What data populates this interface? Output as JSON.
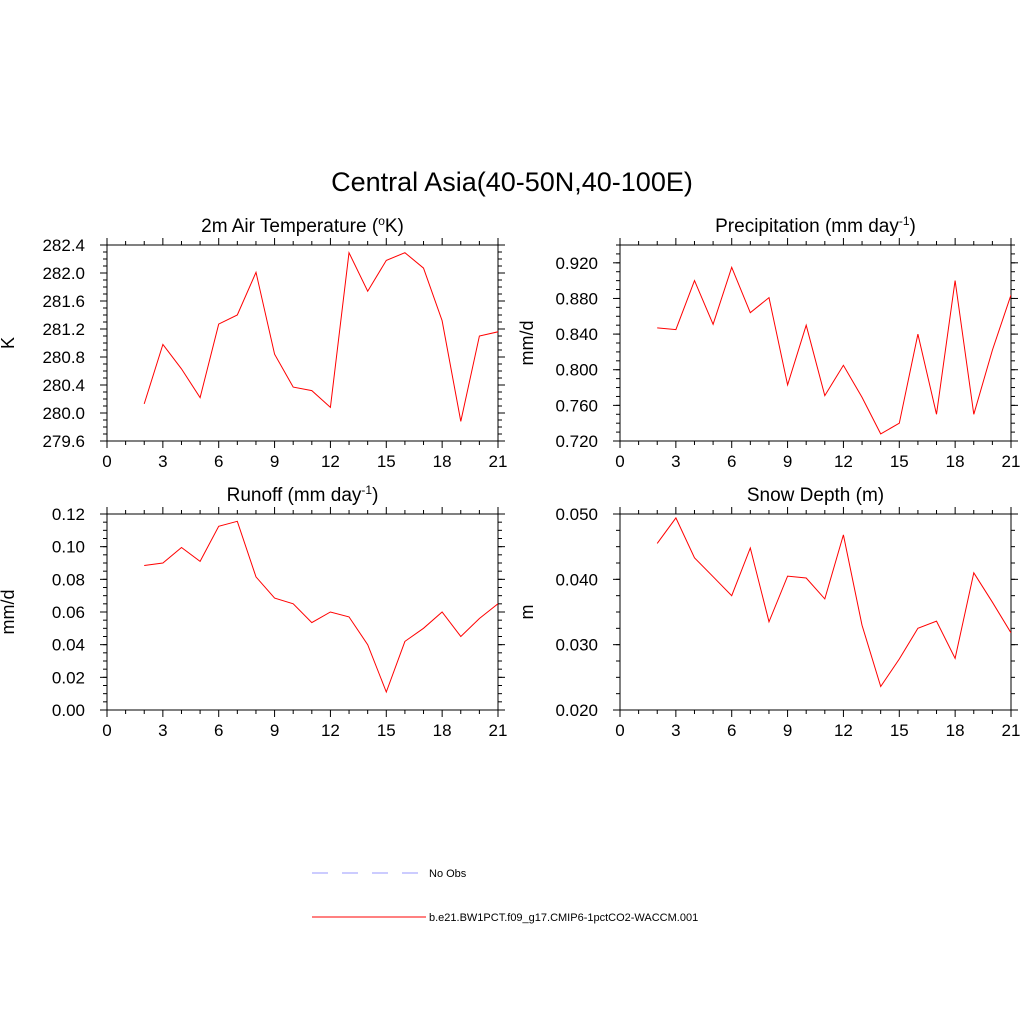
{
  "title": "Central Asia(40-50N,40-100E)",
  "legend": [
    {
      "label": "No Obs",
      "color": "#9999ff",
      "dash": true
    },
    {
      "label": "b.e21.BW1PCT.f09_g17.CMIP6-1pctCO2-WACCM.001",
      "color": "#ff0000",
      "dash": false
    }
  ],
  "chart_data": [
    {
      "type": "line",
      "title": "2m Air Temperature (°K)",
      "title_parts": [
        "2m Air Temperature (",
        "o",
        "K)"
      ],
      "ylabel": "K",
      "xlim": [
        0,
        21
      ],
      "ylim": [
        279.6,
        282.4
      ],
      "xticks": [
        "0",
        "3",
        "6",
        "9",
        "12",
        "15",
        "18",
        "21"
      ],
      "yticks": [
        "279.6",
        "280.0",
        "280.4",
        "280.8",
        "281.2",
        "281.6",
        "282.0",
        "282.4"
      ],
      "series": [
        {
          "name": "b.e21.BW1PCT.f09_g17.CMIP6-1pctCO2-WACCM.001",
          "color": "#ff0000",
          "x": [
            2,
            3,
            4,
            5,
            6,
            7,
            8,
            9,
            10,
            11,
            12,
            13,
            14,
            15,
            16,
            17,
            18,
            19,
            20,
            21
          ],
          "y": [
            280.13,
            280.98,
            280.63,
            280.22,
            281.27,
            281.4,
            282.01,
            280.84,
            280.37,
            280.32,
            280.08,
            282.29,
            281.74,
            282.18,
            282.29,
            282.07,
            281.32,
            279.88,
            281.1,
            281.16
          ]
        }
      ]
    },
    {
      "type": "line",
      "title": "Precipitation (mm day-1)",
      "title_parts": [
        "Precipitation (mm day",
        "-1",
        ")"
      ],
      "ylabel": "mm/d",
      "xlim": [
        0,
        21
      ],
      "ylim": [
        0.72,
        0.94
      ],
      "xticks": [
        "0",
        "3",
        "6",
        "9",
        "12",
        "15",
        "18",
        "21"
      ],
      "yticks": [
        "0.720",
        "0.760",
        "0.800",
        "0.840",
        "0.880",
        "0.920"
      ],
      "series": [
        {
          "name": "b.e21.BW1PCT.f09_g17.CMIP6-1pctCO2-WACCM.001",
          "color": "#ff0000",
          "x": [
            2,
            3,
            4,
            5,
            6,
            7,
            8,
            9,
            10,
            11,
            12,
            13,
            14,
            15,
            16,
            17,
            18,
            19,
            20,
            21
          ],
          "y": [
            0.847,
            0.845,
            0.9,
            0.851,
            0.915,
            0.864,
            0.881,
            0.783,
            0.85,
            0.771,
            0.805,
            0.769,
            0.728,
            0.74,
            0.84,
            0.75,
            0.9,
            0.75,
            0.822,
            0.884
          ]
        }
      ]
    },
    {
      "type": "line",
      "title": "Runoff (mm day-1)",
      "title_parts": [
        "Runoff (mm day",
        "-1",
        ")"
      ],
      "ylabel": "mm/d",
      "xlim": [
        0,
        21
      ],
      "ylim": [
        0.0,
        0.12
      ],
      "xticks": [
        "0",
        "3",
        "6",
        "9",
        "12",
        "15",
        "18",
        "21"
      ],
      "yticks": [
        "0.00",
        "0.02",
        "0.04",
        "0.06",
        "0.08",
        "0.10",
        "0.12"
      ],
      "series": [
        {
          "name": "b.e21.BW1PCT.f09_g17.CMIP6-1pctCO2-WACCM.001",
          "color": "#ff0000",
          "x": [
            2,
            3,
            4,
            5,
            6,
            7,
            8,
            9,
            10,
            11,
            12,
            13,
            14,
            15,
            16,
            17,
            18,
            19,
            20,
            21
          ],
          "y": [
            0.0885,
            0.09,
            0.0995,
            0.091,
            0.1125,
            0.1155,
            0.0815,
            0.0685,
            0.065,
            0.0535,
            0.06,
            0.057,
            0.04,
            0.011,
            0.042,
            0.05,
            0.06,
            0.045,
            0.056,
            0.065
          ]
        }
      ]
    },
    {
      "type": "line",
      "title": "Snow Depth (m)",
      "title_parts": [
        "Snow Depth (m)",
        "",
        ""
      ],
      "ylabel": "m",
      "xlim": [
        0,
        21
      ],
      "ylim": [
        0.02,
        0.05
      ],
      "xticks": [
        "0",
        "3",
        "6",
        "9",
        "12",
        "15",
        "18",
        "21"
      ],
      "yticks": [
        "0.020",
        "0.030",
        "0.040",
        "0.050"
      ],
      "series": [
        {
          "name": "b.e21.BW1PCT.f09_g17.CMIP6-1pctCO2-WACCM.001",
          "color": "#ff0000",
          "x": [
            2,
            3,
            4,
            5,
            6,
            7,
            8,
            9,
            10,
            11,
            12,
            13,
            14,
            15,
            16,
            17,
            18,
            19,
            20,
            21
          ],
          "y": [
            0.0455,
            0.0494,
            0.0433,
            0.0404,
            0.0375,
            0.0448,
            0.0335,
            0.0405,
            0.0402,
            0.037,
            0.0468,
            0.033,
            0.0236,
            0.0278,
            0.0325,
            0.0336,
            0.0279,
            0.041,
            0.0365,
            0.0318
          ]
        }
      ]
    }
  ]
}
